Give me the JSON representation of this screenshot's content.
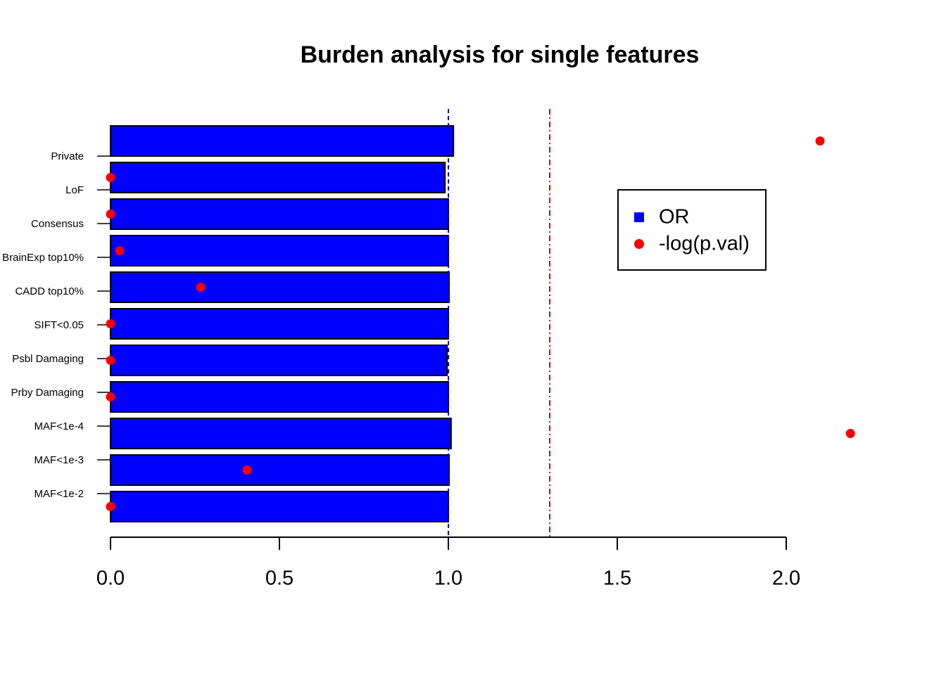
{
  "chart_data": {
    "type": "bar",
    "orientation": "horizontal",
    "title": "Burden analysis for single features",
    "categories": [
      "Private",
      "LoF",
      "Consensus",
      "BrainExp top10%",
      "CADD top10%",
      "SIFT<0.05",
      "Psbl Damaging",
      "Prby Damaging",
      "MAF<1e-4",
      "MAF<1e-3",
      "MAF<1e-2"
    ],
    "series": [
      {
        "name": "OR",
        "color": "#0000ff",
        "values": [
          1.015,
          0.99,
          1.0,
          1.0,
          1.002,
          1.0,
          0.996,
          1.0,
          1.008,
          1.002,
          1.0
        ]
      },
      {
        "name": "-log(p.val)",
        "color": "#ff0000",
        "values": [
          2.1,
          0.0,
          0.0,
          0.027,
          0.267,
          0.0,
          0.0,
          0.0,
          2.19,
          0.404,
          0.0
        ]
      }
    ],
    "reference_lines": [
      {
        "value": 1.0,
        "color": "#0000cc"
      },
      {
        "value": 1.3,
        "color": "#dd0000"
      }
    ],
    "xlim": [
      0,
      2.0
    ],
    "xticks": [
      {
        "value": 0,
        "label": "0.0"
      },
      {
        "value": 0.5,
        "label": "0.5"
      },
      {
        "value": 1,
        "label": "1.0"
      },
      {
        "value": 1.5,
        "label": "1.5"
      },
      {
        "value": 2,
        "label": "2.0"
      }
    ],
    "legend": "top-right"
  }
}
